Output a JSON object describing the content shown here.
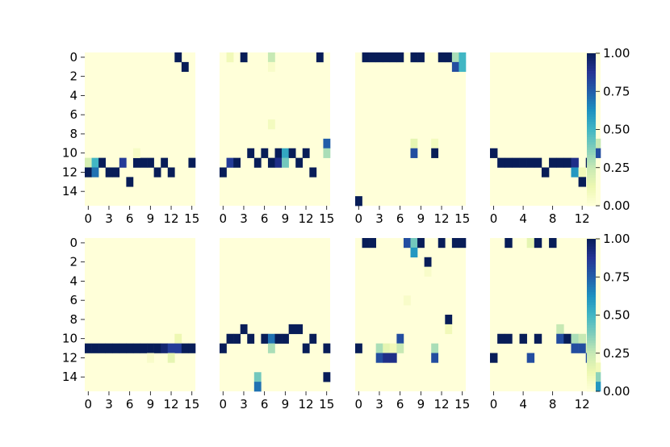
{
  "figure": {
    "background": "#ffffff"
  },
  "colormap": {
    "name": "YlGnBu",
    "stops": [
      "#ffffd9",
      "#edf8b1",
      "#c7e9b4",
      "#7fcdbb",
      "#41b6c4",
      "#1d91c0",
      "#225ea8",
      "#253494",
      "#081d58"
    ],
    "ticks": [
      "0.00",
      "0.25",
      "0.50",
      "0.75",
      "1.00"
    ],
    "range": [
      0,
      1
    ]
  },
  "chart_data": [
    {
      "type": "heatmap",
      "rows": 16,
      "cols": 16,
      "yticks": [
        "0",
        "2",
        "4",
        "6",
        "8",
        "10",
        "12",
        "14"
      ],
      "xticks": [
        "0",
        "3",
        "6",
        "9",
        "12",
        "15"
      ],
      "cells": [
        [
          0,
          13,
          1
        ],
        [
          1,
          14,
          1
        ],
        [
          11,
          0,
          0.2
        ],
        [
          11,
          1,
          0.5
        ],
        [
          11,
          2,
          1
        ],
        [
          11,
          7,
          1
        ],
        [
          11,
          8,
          1
        ],
        [
          11,
          9,
          1
        ],
        [
          11,
          5,
          0.85
        ],
        [
          11,
          11,
          1
        ],
        [
          11,
          15,
          1
        ],
        [
          12,
          0,
          1
        ],
        [
          12,
          1,
          0.7
        ],
        [
          12,
          3,
          1
        ],
        [
          12,
          4,
          1
        ],
        [
          12,
          10,
          1
        ],
        [
          12,
          12,
          1
        ],
        [
          13,
          6,
          1
        ],
        [
          10,
          7,
          0.06
        ]
      ]
    },
    {
      "type": "heatmap",
      "rows": 16,
      "cols": 16,
      "yticks": [],
      "xticks": [
        "0",
        "3",
        "6",
        "9",
        "12",
        "15"
      ],
      "cells": [
        [
          0,
          1,
          0.1
        ],
        [
          0,
          3,
          1
        ],
        [
          0,
          7,
          0.25
        ],
        [
          0,
          14,
          1
        ],
        [
          1,
          7,
          0.05
        ],
        [
          7,
          7,
          0.08
        ],
        [
          9,
          15,
          0.75
        ],
        [
          10,
          4,
          1
        ],
        [
          10,
          6,
          1
        ],
        [
          10,
          8,
          1
        ],
        [
          10,
          9,
          0.55
        ],
        [
          10,
          10,
          1
        ],
        [
          10,
          12,
          1
        ],
        [
          10,
          15,
          0.3
        ],
        [
          11,
          1,
          0.85
        ],
        [
          11,
          2,
          1
        ],
        [
          11,
          5,
          1
        ],
        [
          11,
          7,
          1
        ],
        [
          11,
          8,
          0.9
        ],
        [
          11,
          9,
          0.4
        ],
        [
          11,
          11,
          1
        ],
        [
          12,
          0,
          1
        ],
        [
          12,
          13,
          1
        ]
      ]
    },
    {
      "type": "heatmap",
      "rows": 16,
      "cols": 16,
      "yticks": [],
      "xticks": [
        "0",
        "3",
        "6",
        "9",
        "12",
        "15"
      ],
      "cells": [
        [
          0,
          1,
          1
        ],
        [
          0,
          2,
          1
        ],
        [
          0,
          3,
          1
        ],
        [
          0,
          4,
          1
        ],
        [
          0,
          5,
          1
        ],
        [
          0,
          6,
          1
        ],
        [
          0,
          8,
          1
        ],
        [
          0,
          9,
          1
        ],
        [
          0,
          12,
          1
        ],
        [
          0,
          13,
          1
        ],
        [
          0,
          14,
          0.3
        ],
        [
          0,
          15,
          0.5
        ],
        [
          1,
          14,
          0.8
        ],
        [
          1,
          15,
          0.5
        ],
        [
          9,
          8,
          0.15
        ],
        [
          9,
          11,
          0.08
        ],
        [
          10,
          8,
          0.8
        ],
        [
          10,
          11,
          1
        ],
        [
          15,
          0,
          1
        ]
      ]
    },
    {
      "type": "heatmap",
      "rows": 16,
      "cols": 15,
      "yticks": [],
      "xticks": [
        "0",
        "4",
        "8",
        "12"
      ],
      "cells": [
        [
          9,
          14,
          0.25
        ],
        [
          10,
          0,
          1
        ],
        [
          10,
          14,
          0.8
        ],
        [
          11,
          1,
          1
        ],
        [
          11,
          2,
          1
        ],
        [
          11,
          3,
          1
        ],
        [
          11,
          4,
          1
        ],
        [
          11,
          5,
          1
        ],
        [
          11,
          6,
          1
        ],
        [
          11,
          8,
          1
        ],
        [
          11,
          9,
          1
        ],
        [
          11,
          10,
          1
        ],
        [
          11,
          11,
          0.9
        ],
        [
          11,
          13,
          1
        ],
        [
          12,
          7,
          1
        ],
        [
          12,
          11,
          0.6
        ],
        [
          12,
          12,
          0.1
        ],
        [
          13,
          12,
          1
        ]
      ]
    },
    {
      "type": "heatmap",
      "rows": 16,
      "cols": 16,
      "yticks": [
        "0",
        "2",
        "4",
        "6",
        "8",
        "10",
        "12",
        "14"
      ],
      "xticks": [
        "0",
        "3",
        "6",
        "9",
        "12",
        "15"
      ],
      "cells": [
        [
          10,
          13,
          0.12
        ],
        [
          11,
          0,
          1
        ],
        [
          11,
          1,
          1
        ],
        [
          11,
          2,
          1
        ],
        [
          11,
          3,
          1
        ],
        [
          11,
          4,
          1
        ],
        [
          11,
          5,
          1
        ],
        [
          11,
          6,
          1
        ],
        [
          11,
          7,
          1
        ],
        [
          11,
          8,
          1
        ],
        [
          11,
          9,
          1
        ],
        [
          11,
          10,
          1
        ],
        [
          11,
          11,
          0.95
        ],
        [
          11,
          12,
          0.85
        ],
        [
          11,
          13,
          0.85
        ],
        [
          11,
          14,
          1
        ],
        [
          11,
          15,
          1
        ],
        [
          12,
          9,
          0.05
        ],
        [
          12,
          12,
          0.15
        ]
      ]
    },
    {
      "type": "heatmap",
      "rows": 16,
      "cols": 16,
      "yticks": [],
      "xticks": [
        "0",
        "3",
        "6",
        "9",
        "12",
        "15"
      ],
      "cells": [
        [
          9,
          3,
          1
        ],
        [
          9,
          10,
          1
        ],
        [
          9,
          11,
          1
        ],
        [
          10,
          1,
          1
        ],
        [
          10,
          2,
          1
        ],
        [
          10,
          4,
          1
        ],
        [
          10,
          6,
          1
        ],
        [
          10,
          7,
          0.7
        ],
        [
          10,
          8,
          1
        ],
        [
          10,
          9,
          1
        ],
        [
          10,
          13,
          1
        ],
        [
          11,
          0,
          1
        ],
        [
          11,
          7,
          0.3
        ],
        [
          11,
          12,
          1
        ],
        [
          11,
          15,
          1
        ],
        [
          14,
          5,
          0.4
        ],
        [
          14,
          15,
          1
        ],
        [
          15,
          5,
          0.7
        ]
      ]
    },
    {
      "type": "heatmap",
      "rows": 16,
      "cols": 16,
      "yticks": [],
      "xticks": [
        "0",
        "3",
        "6",
        "9",
        "12",
        "15"
      ],
      "cells": [
        [
          0,
          1,
          1
        ],
        [
          0,
          2,
          1
        ],
        [
          0,
          7,
          0.8
        ],
        [
          0,
          8,
          0.4
        ],
        [
          0,
          9,
          1
        ],
        [
          0,
          12,
          1
        ],
        [
          0,
          14,
          1
        ],
        [
          0,
          15,
          1
        ],
        [
          1,
          8,
          0.6
        ],
        [
          2,
          10,
          1
        ],
        [
          3,
          10,
          0.05
        ],
        [
          6,
          7,
          0.05
        ],
        [
          8,
          13,
          1
        ],
        [
          9,
          13,
          0.1
        ],
        [
          10,
          6,
          0.8
        ],
        [
          11,
          0,
          1
        ],
        [
          11,
          3,
          0.3
        ],
        [
          11,
          4,
          0.15
        ],
        [
          11,
          5,
          0.1
        ],
        [
          11,
          6,
          0.25
        ],
        [
          11,
          11,
          0.3
        ],
        [
          12,
          3,
          0.8
        ],
        [
          12,
          4,
          0.9
        ],
        [
          12,
          5,
          0.9
        ],
        [
          12,
          11,
          0.8
        ]
      ]
    },
    {
      "type": "heatmap",
      "rows": 16,
      "cols": 15,
      "yticks": [],
      "xticks": [
        "0",
        "4",
        "8",
        "12"
      ],
      "cells": [
        [
          0,
          2,
          1
        ],
        [
          0,
          5,
          0.15
        ],
        [
          0,
          6,
          1
        ],
        [
          0,
          8,
          1
        ],
        [
          9,
          9,
          0.25
        ],
        [
          10,
          1,
          1
        ],
        [
          10,
          2,
          1
        ],
        [
          10,
          4,
          1
        ],
        [
          10,
          6,
          1
        ],
        [
          10,
          9,
          0.8
        ],
        [
          10,
          10,
          1
        ],
        [
          10,
          11,
          0.3
        ],
        [
          10,
          12,
          0.25
        ],
        [
          11,
          11,
          0.8
        ],
        [
          11,
          12,
          0.8
        ],
        [
          11,
          13,
          0.2
        ],
        [
          12,
          0,
          1
        ],
        [
          12,
          5,
          0.8
        ],
        [
          12,
          13,
          0.8
        ],
        [
          13,
          14,
          0.1
        ],
        [
          14,
          14,
          0.35
        ],
        [
          15,
          14,
          0.6
        ]
      ]
    }
  ],
  "panels_layout": {
    "grid": [
      2,
      4
    ]
  }
}
